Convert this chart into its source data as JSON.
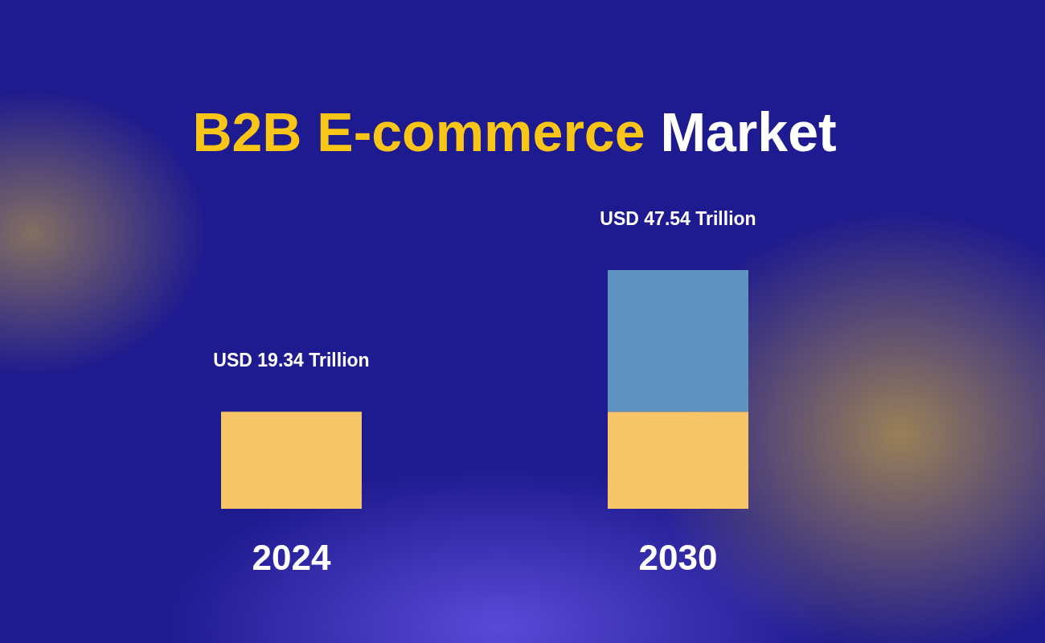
{
  "chart_data": {
    "type": "bar",
    "title": "B2B E-commerce Market",
    "categories": [
      "2024",
      "2030"
    ],
    "stacked": true,
    "series": [
      {
        "color": "#f6c567",
        "values": [
          19.34,
          19.34
        ],
        "value_labels": [
          "USD 19.34 Trillion",
          null
        ]
      },
      {
        "color": "#5f93bf",
        "values": [
          null,
          28.2
        ]
      }
    ],
    "totals": [
      null,
      "USD 47.54 Trillion"
    ],
    "tick_labels": "x"
  }
}
